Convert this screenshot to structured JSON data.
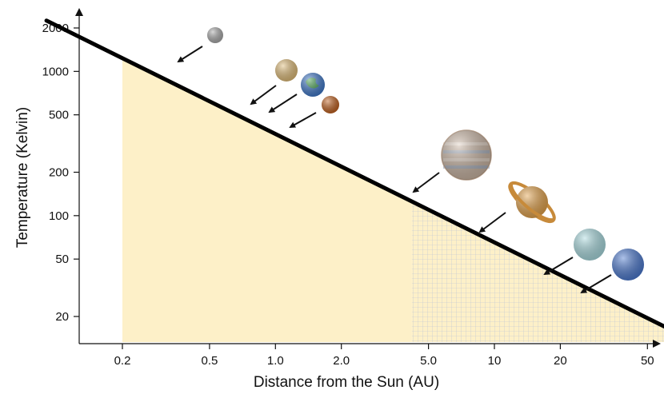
{
  "chart_data": {
    "type": "line",
    "xlabel": "Distance from the Sun (AU)",
    "ylabel": "Temperature (Kelvin)",
    "x_scale": "log",
    "y_scale": "log",
    "x_ticks": [
      "0.2",
      "0.5",
      "1.0",
      "2.0",
      "5.0",
      "10",
      "20",
      "50"
    ],
    "y_ticks": [
      "2000",
      "1000",
      "500",
      "200",
      "100",
      "50",
      "20"
    ],
    "series": [
      {
        "x": [
          0.09,
          65
        ],
        "y": [
          2250,
          16
        ]
      }
    ],
    "regions": [
      {
        "fill": "solid",
        "x_range": [
          0.2,
          4.2
        ],
        "color": "#fdf0c8"
      },
      {
        "fill": "grid",
        "x_range": [
          4.2,
          60
        ],
        "color": "#fdf0c8",
        "grid_color": "#b9c0d6"
      }
    ],
    "planets": [
      {
        "name": "mercury-icon",
        "color": "#a9a9a9",
        "size": 10
      },
      {
        "name": "venus-icon",
        "color": "#e0bc78",
        "size": 14
      },
      {
        "name": "earth-icon",
        "color": "#3f78c9",
        "size": 15
      },
      {
        "name": "mars-icon",
        "color": "#c0601e",
        "size": 11
      },
      {
        "name": "jupiter-icon",
        "color": "#cbb6a4",
        "size": 31
      },
      {
        "name": "saturn-icon",
        "color": "#e3a24a",
        "size": 20
      },
      {
        "name": "uranus-icon",
        "color": "#a9dbe0",
        "size": 20
      },
      {
        "name": "neptune-icon",
        "color": "#4a78cf",
        "size": 20
      }
    ],
    "grid": false
  }
}
